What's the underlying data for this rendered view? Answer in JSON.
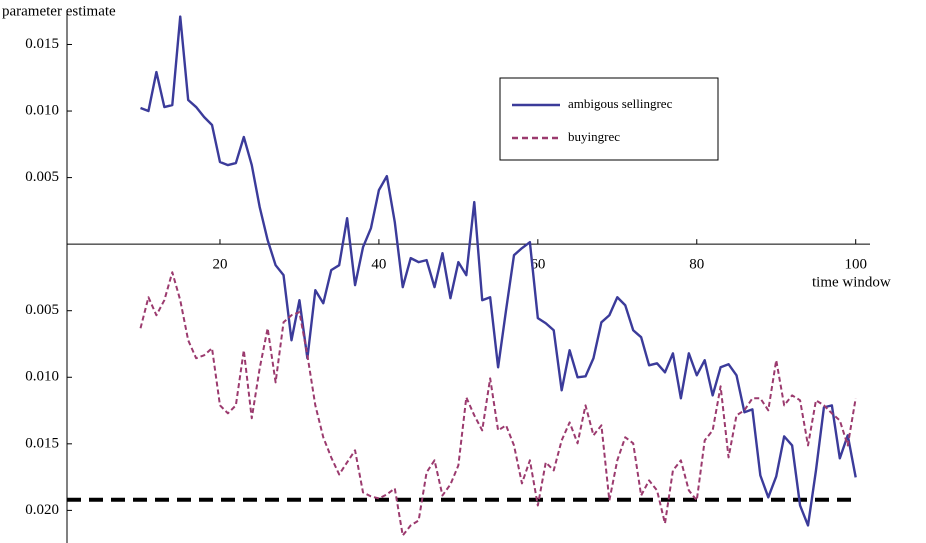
{
  "chart_data": {
    "type": "line",
    "y_label": "parameter estimate",
    "x_label": "time window",
    "x": [
      10,
      11,
      12,
      13,
      14,
      15,
      16,
      17,
      18,
      19,
      20,
      21,
      22,
      23,
      24,
      25,
      26,
      27,
      28,
      29,
      30,
      31,
      32,
      33,
      34,
      35,
      36,
      37,
      38,
      39,
      40,
      41,
      42,
      43,
      44,
      45,
      46,
      47,
      48,
      49,
      50,
      51,
      52,
      53,
      54,
      55,
      56,
      57,
      58,
      59,
      60,
      61,
      62,
      63,
      64,
      65,
      66,
      67,
      68,
      69,
      70,
      71,
      72,
      73,
      74,
      75,
      76,
      77,
      78,
      79,
      80,
      81,
      82,
      83,
      84,
      85,
      86,
      87,
      88,
      89,
      90,
      91,
      92,
      93,
      94,
      95,
      96,
      97,
      98,
      99,
      100
    ],
    "series": [
      {
        "name": "ambigous sellingrec",
        "color": "#3b3b9a",
        "dash": false,
        "values": [
          0.01023,
          0.01,
          0.01293,
          0.0103,
          0.01045,
          0.0171,
          0.01083,
          0.0103,
          0.00955,
          0.00895,
          0.00617,
          0.00594,
          0.00609,
          0.00805,
          0.00594,
          0.00278,
          0.0003,
          -0.00158,
          -0.00233,
          -0.00722,
          -0.00421,
          -0.00857,
          -0.00346,
          -0.00444,
          -0.00195,
          -0.00158,
          0.00195,
          -0.00308,
          -0.00023,
          0.0012,
          0.00406,
          0.00511,
          0.00165,
          -0.00323,
          -0.00105,
          -0.00135,
          -0.0012,
          -0.00323,
          -0.00068,
          -0.00406,
          -0.00135,
          -0.00233,
          0.00316,
          -0.00421,
          -0.00399,
          -0.00925,
          -0.00496,
          -0.00083,
          -0.0003,
          0.00015,
          -0.00556,
          -0.00594,
          -0.00647,
          -0.01098,
          -0.00797,
          -0.01,
          -0.00993,
          -0.00857,
          -0.00587,
          -0.00534,
          -0.00399,
          -0.00459,
          -0.00647,
          -0.00699,
          -0.0091,
          -0.00895,
          -0.00963,
          -0.0082,
          -0.01158,
          -0.0082,
          -0.00985,
          -0.00872,
          -0.01136,
          -0.00925,
          -0.00902,
          -0.00985,
          -0.01263,
          -0.01241,
          -0.01737,
          -0.01902,
          -0.01745,
          -0.01444,
          -0.01512,
          -0.01963,
          -0.02113,
          -0.017,
          -0.01226,
          -0.01211,
          -0.01609,
          -0.01436,
          -0.01752
        ]
      },
      {
        "name": "buyingrec",
        "color": "#9b3a6e",
        "dash": true,
        "values": [
          -0.00632,
          -0.00399,
          -0.00534,
          -0.00421,
          -0.00211,
          -0.00421,
          -0.00722,
          -0.00857,
          -0.00835,
          -0.00782,
          -0.01211,
          -0.01271,
          -0.01211,
          -0.00797,
          -0.01308,
          -0.00932,
          -0.00632,
          -0.01038,
          -0.00587,
          -0.00534,
          -0.00511,
          -0.00835,
          -0.01211,
          -0.01451,
          -0.01602,
          -0.0173,
          -0.01639,
          -0.01549,
          -0.01865,
          -0.01895,
          -0.0191,
          -0.0188,
          -0.01835,
          -0.02188,
          -0.02113,
          -0.02076,
          -0.01715,
          -0.01624,
          -0.01888,
          -0.01805,
          -0.01662,
          -0.01151,
          -0.01286,
          -0.01399,
          -0.01008,
          -0.01399,
          -0.01361,
          -0.01512,
          -0.01797,
          -0.01624,
          -0.01963,
          -0.01639,
          -0.017,
          -0.01474,
          -0.01339,
          -0.01496,
          -0.01211,
          -0.01436,
          -0.01361,
          -0.01925,
          -0.01624,
          -0.01451,
          -0.01496,
          -0.01888,
          -0.01775,
          -0.0185,
          -0.02098,
          -0.017,
          -0.01624,
          -0.0185,
          -0.01925,
          -0.01474,
          -0.01399,
          -0.01068,
          -0.01602,
          -0.01286,
          -0.01248,
          -0.01158,
          -0.01158,
          -0.01248,
          -0.00872,
          -0.01211,
          -0.01136,
          -0.01173,
          -0.01512,
          -0.01173,
          -0.01211,
          -0.01271,
          -0.01324,
          -0.01512,
          -0.01158
        ]
      }
    ],
    "xlim": [
      0.75,
      101.8
    ],
    "ylim": [
      -0.02245,
      0.01759
    ],
    "xticks": [
      20,
      40,
      60,
      80,
      100
    ],
    "yticks": [
      0.015,
      {
        "value": 0.01,
        "label": "0.010"
      },
      0.005,
      {
        "value": -0.005,
        "label": "0.005"
      },
      {
        "value": -0.01,
        "label": "0.010"
      },
      {
        "value": -0.015,
        "label": "0.015"
      },
      {
        "value": -0.02,
        "label": "0.020"
      }
    ],
    "reference_line": {
      "value": -0.0192,
      "color": "#000000"
    }
  }
}
